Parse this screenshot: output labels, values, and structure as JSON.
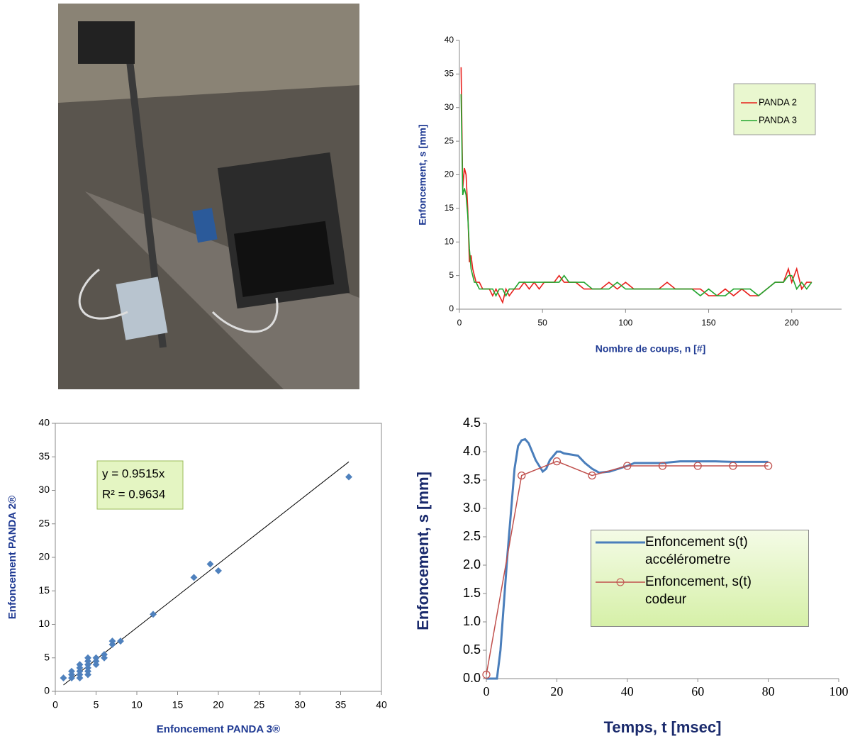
{
  "chart_data": [
    {
      "type": "line",
      "xlabel": "Nombre de coups, n [#]",
      "ylabel": "Enfoncement, s [mm]",
      "x": [
        1,
        2,
        3,
        4,
        5,
        6,
        7,
        8,
        9,
        10,
        12,
        14,
        16,
        18,
        20,
        22,
        24,
        26,
        28,
        30,
        33,
        36,
        39,
        42,
        45,
        48,
        51,
        54,
        57,
        60,
        63,
        66,
        70,
        75,
        80,
        85,
        90,
        95,
        100,
        105,
        110,
        115,
        120,
        125,
        130,
        135,
        140,
        145,
        150,
        155,
        160,
        165,
        170,
        175,
        180,
        185,
        190,
        195,
        198,
        200,
        203,
        206,
        209,
        212
      ],
      "series": [
        {
          "name": "PANDA 2",
          "color": "#e8201c",
          "values": [
            36,
            18,
            21,
            20,
            15,
            7,
            8,
            6,
            5,
            4,
            4,
            3,
            3,
            3,
            2,
            3,
            2,
            1,
            3,
            2,
            3,
            3,
            4,
            3,
            4,
            3,
            4,
            4,
            4,
            5,
            4,
            4,
            4,
            3,
            3,
            3,
            4,
            3,
            4,
            3,
            3,
            3,
            3,
            4,
            3,
            3,
            3,
            3,
            2,
            2,
            3,
            2,
            3,
            2,
            2,
            3,
            4,
            4,
            6,
            4,
            6,
            3,
            4,
            4
          ]
        },
        {
          "name": "PANDA 3",
          "color": "#22a52e",
          "values": [
            32,
            17,
            18,
            17,
            14,
            9,
            6,
            5,
            4,
            4,
            3,
            3,
            3,
            3,
            3,
            2,
            3,
            3,
            2,
            3,
            3,
            4,
            4,
            4,
            4,
            4,
            4,
            4,
            4,
            4,
            5,
            4,
            4,
            4,
            3,
            3,
            3,
            4,
            3,
            3,
            3,
            3,
            3,
            3,
            3,
            3,
            3,
            2,
            3,
            2,
            2,
            3,
            3,
            3,
            2,
            3,
            4,
            4,
            5,
            5,
            3,
            4,
            3,
            4
          ]
        }
      ],
      "xlim": [
        0,
        230
      ],
      "xticks": [
        0,
        50,
        100,
        150,
        200
      ],
      "ylim": [
        0,
        40
      ],
      "yticks": [
        0,
        5,
        10,
        15,
        20,
        25,
        30,
        35,
        40
      ],
      "legend": "upper right",
      "grid": false
    },
    {
      "type": "scatter",
      "xlabel": "Enfoncement PANDA 3®",
      "ylabel": "Enfoncement PANDA 2®",
      "x": [
        1,
        2,
        2,
        2,
        3,
        3,
        3,
        3,
        3,
        4,
        4,
        4,
        4,
        4,
        4,
        5,
        5,
        5,
        6,
        6,
        7,
        7,
        8,
        12,
        17,
        19,
        20,
        36
      ],
      "values": [
        2,
        2,
        2.5,
        3,
        2,
        2.5,
        3,
        3.5,
        4,
        2.5,
        3,
        3.5,
        4,
        4.5,
        5,
        4,
        4.5,
        5,
        5,
        5.5,
        7,
        7.5,
        7.5,
        11.5,
        17,
        19,
        18,
        32
      ],
      "color": "#4f81bd",
      "trendline": {
        "slope": 0.9515,
        "label": "y = 0.9515x",
        "r2_label": "R² = 0.9634"
      },
      "xlim": [
        0,
        40
      ],
      "xticks": [
        0,
        5,
        10,
        15,
        20,
        25,
        30,
        35,
        40
      ],
      "ylim": [
        0,
        40
      ],
      "yticks": [
        0,
        5,
        10,
        15,
        20,
        25,
        30,
        35,
        40
      ],
      "grid": false
    },
    {
      "type": "line",
      "xlabel": "Temps, t [msec]",
      "ylabel": "Enfoncement, s [mm]",
      "series": [
        {
          "name": "Enfoncement s(t) accélérometre",
          "color": "#4a7ebb",
          "marker": "none",
          "x": [
            0,
            2,
            3,
            4,
            6,
            8,
            9,
            10,
            11,
            12,
            14,
            16,
            17,
            18,
            20,
            21,
            22,
            24,
            26,
            28,
            30,
            32,
            35,
            40,
            42,
            45,
            50,
            55,
            60,
            65,
            70,
            75,
            80
          ],
          "values": [
            0,
            0,
            0,
            0.5,
            2.2,
            3.7,
            4.1,
            4.2,
            4.22,
            4.15,
            3.85,
            3.65,
            3.7,
            3.85,
            4.0,
            4.0,
            3.97,
            3.95,
            3.93,
            3.8,
            3.7,
            3.63,
            3.65,
            3.75,
            3.8,
            3.8,
            3.8,
            3.83,
            3.83,
            3.83,
            3.82,
            3.82,
            3.82
          ]
        },
        {
          "name": "Enfoncement, s(t) codeur",
          "color": "#c0504d",
          "marker": "circle",
          "x": [
            0,
            10,
            20,
            30,
            40,
            50,
            60,
            70,
            80
          ],
          "values": [
            0.07,
            3.58,
            3.83,
            3.58,
            3.75,
            3.75,
            3.75,
            3.75,
            3.75
          ]
        }
      ],
      "xlim": [
        0,
        100
      ],
      "xticks": [
        0,
        20,
        40,
        60,
        80,
        100
      ],
      "ylim": [
        0,
        4.5
      ],
      "yticks": [
        {
          "value": 0,
          "label": "0.0"
        },
        0.5,
        {
          "value": 1,
          "label": "1.0"
        },
        1.5,
        {
          "value": 2,
          "label": "2.0"
        },
        2.5,
        {
          "value": 3,
          "label": "3.0"
        },
        3.5,
        {
          "value": 4,
          "label": "4.0"
        },
        4.5
      ],
      "legend": "center right",
      "grid": false
    }
  ]
}
